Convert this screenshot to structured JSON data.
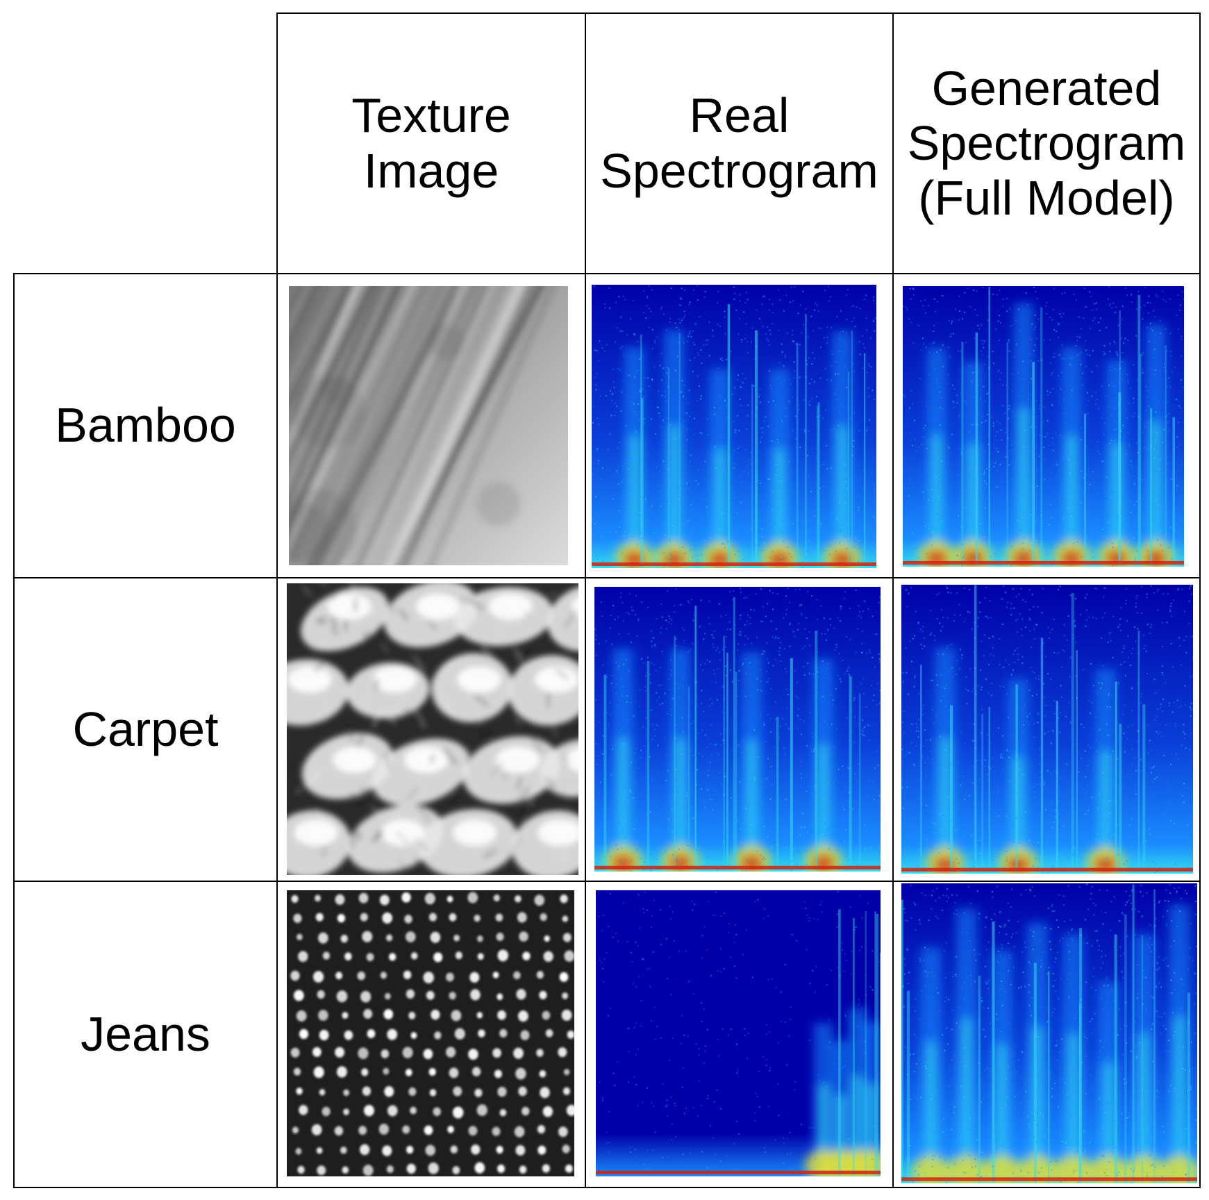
{
  "header": {
    "columns": [
      {
        "lines": [
          "Texture",
          "Image"
        ]
      },
      {
        "lines": [
          "Real",
          "Spectrogram"
        ]
      },
      {
        "lines": [
          "Generated",
          "Spectrogram",
          "(Full Model)"
        ]
      }
    ]
  },
  "rows": [
    {
      "label": "Bamboo",
      "texture": "diagonal-fibers",
      "real": {
        "bursts": [
          0.15,
          0.29,
          0.45,
          0.66,
          0.88
        ]
      },
      "generated": {
        "bursts": [
          0.12,
          0.25,
          0.43,
          0.6,
          0.76,
          0.9
        ]
      }
    },
    {
      "label": "Carpet",
      "texture": "fluffy-tufts",
      "real": {
        "bursts": [
          0.1,
          0.3,
          0.55,
          0.8
        ]
      },
      "generated": {
        "bursts": [
          0.15,
          0.4,
          0.7
        ]
      }
    },
    {
      "label": "Jeans",
      "texture": "dot-pattern",
      "real": {
        "bursts": [
          0.8,
          0.86,
          0.92,
          0.97
        ]
      },
      "generated": {
        "bursts": [
          0.1,
          0.22,
          0.34,
          0.46,
          0.58,
          0.7,
          0.82,
          0.94
        ]
      }
    }
  ],
  "colors": {
    "grid": "#000000",
    "spec_low": "#0000a8",
    "spec_mid": "#1a8cff",
    "spec_cyan": "#33ddee",
    "spec_high": "#e8e030",
    "spec_peak": "#d42010"
  }
}
